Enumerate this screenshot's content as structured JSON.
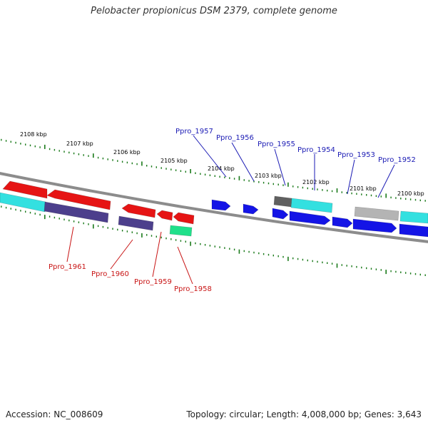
{
  "header": {
    "title": "Pelobacter propionicus DSM 2379, complete genome"
  },
  "footer": {
    "accession": "Accession: NC_008609",
    "topology": "Topology: circular; Length: 4,008,000 bp; Genes: 3,643"
  },
  "colors": {
    "backbone": "#8c8c8c",
    "ticks": "#1a7a1a",
    "forward_label": "#1a1ab4",
    "reverse_label": "#c81414",
    "forward_cds": "#1414e6",
    "reverse_cds": "#e61414",
    "gene_forward": "#33e0e0",
    "gene_reverse": "#4c3f8c",
    "spring_green": "#20e08a",
    "dark_gray": "#606060",
    "light_gray": "#b4b4b4"
  },
  "ruler": {
    "unit": "kbp",
    "labels": [
      "2108 kbp",
      "2107 kbp",
      "2106 kbp",
      "2105 kbp",
      "2104 kbp",
      "2103 kbp",
      "2102 kbp",
      "2101 kbp",
      "2100 kbp"
    ]
  },
  "gene_labels": {
    "forward": [
      "Ppro_1957",
      "Ppro_1956",
      "Ppro_1955",
      "Ppro_1954",
      "Ppro_1953",
      "Ppro_1952"
    ],
    "reverse": [
      "Ppro_1961",
      "Ppro_1960",
      "Ppro_1959",
      "Ppro_1958"
    ]
  }
}
